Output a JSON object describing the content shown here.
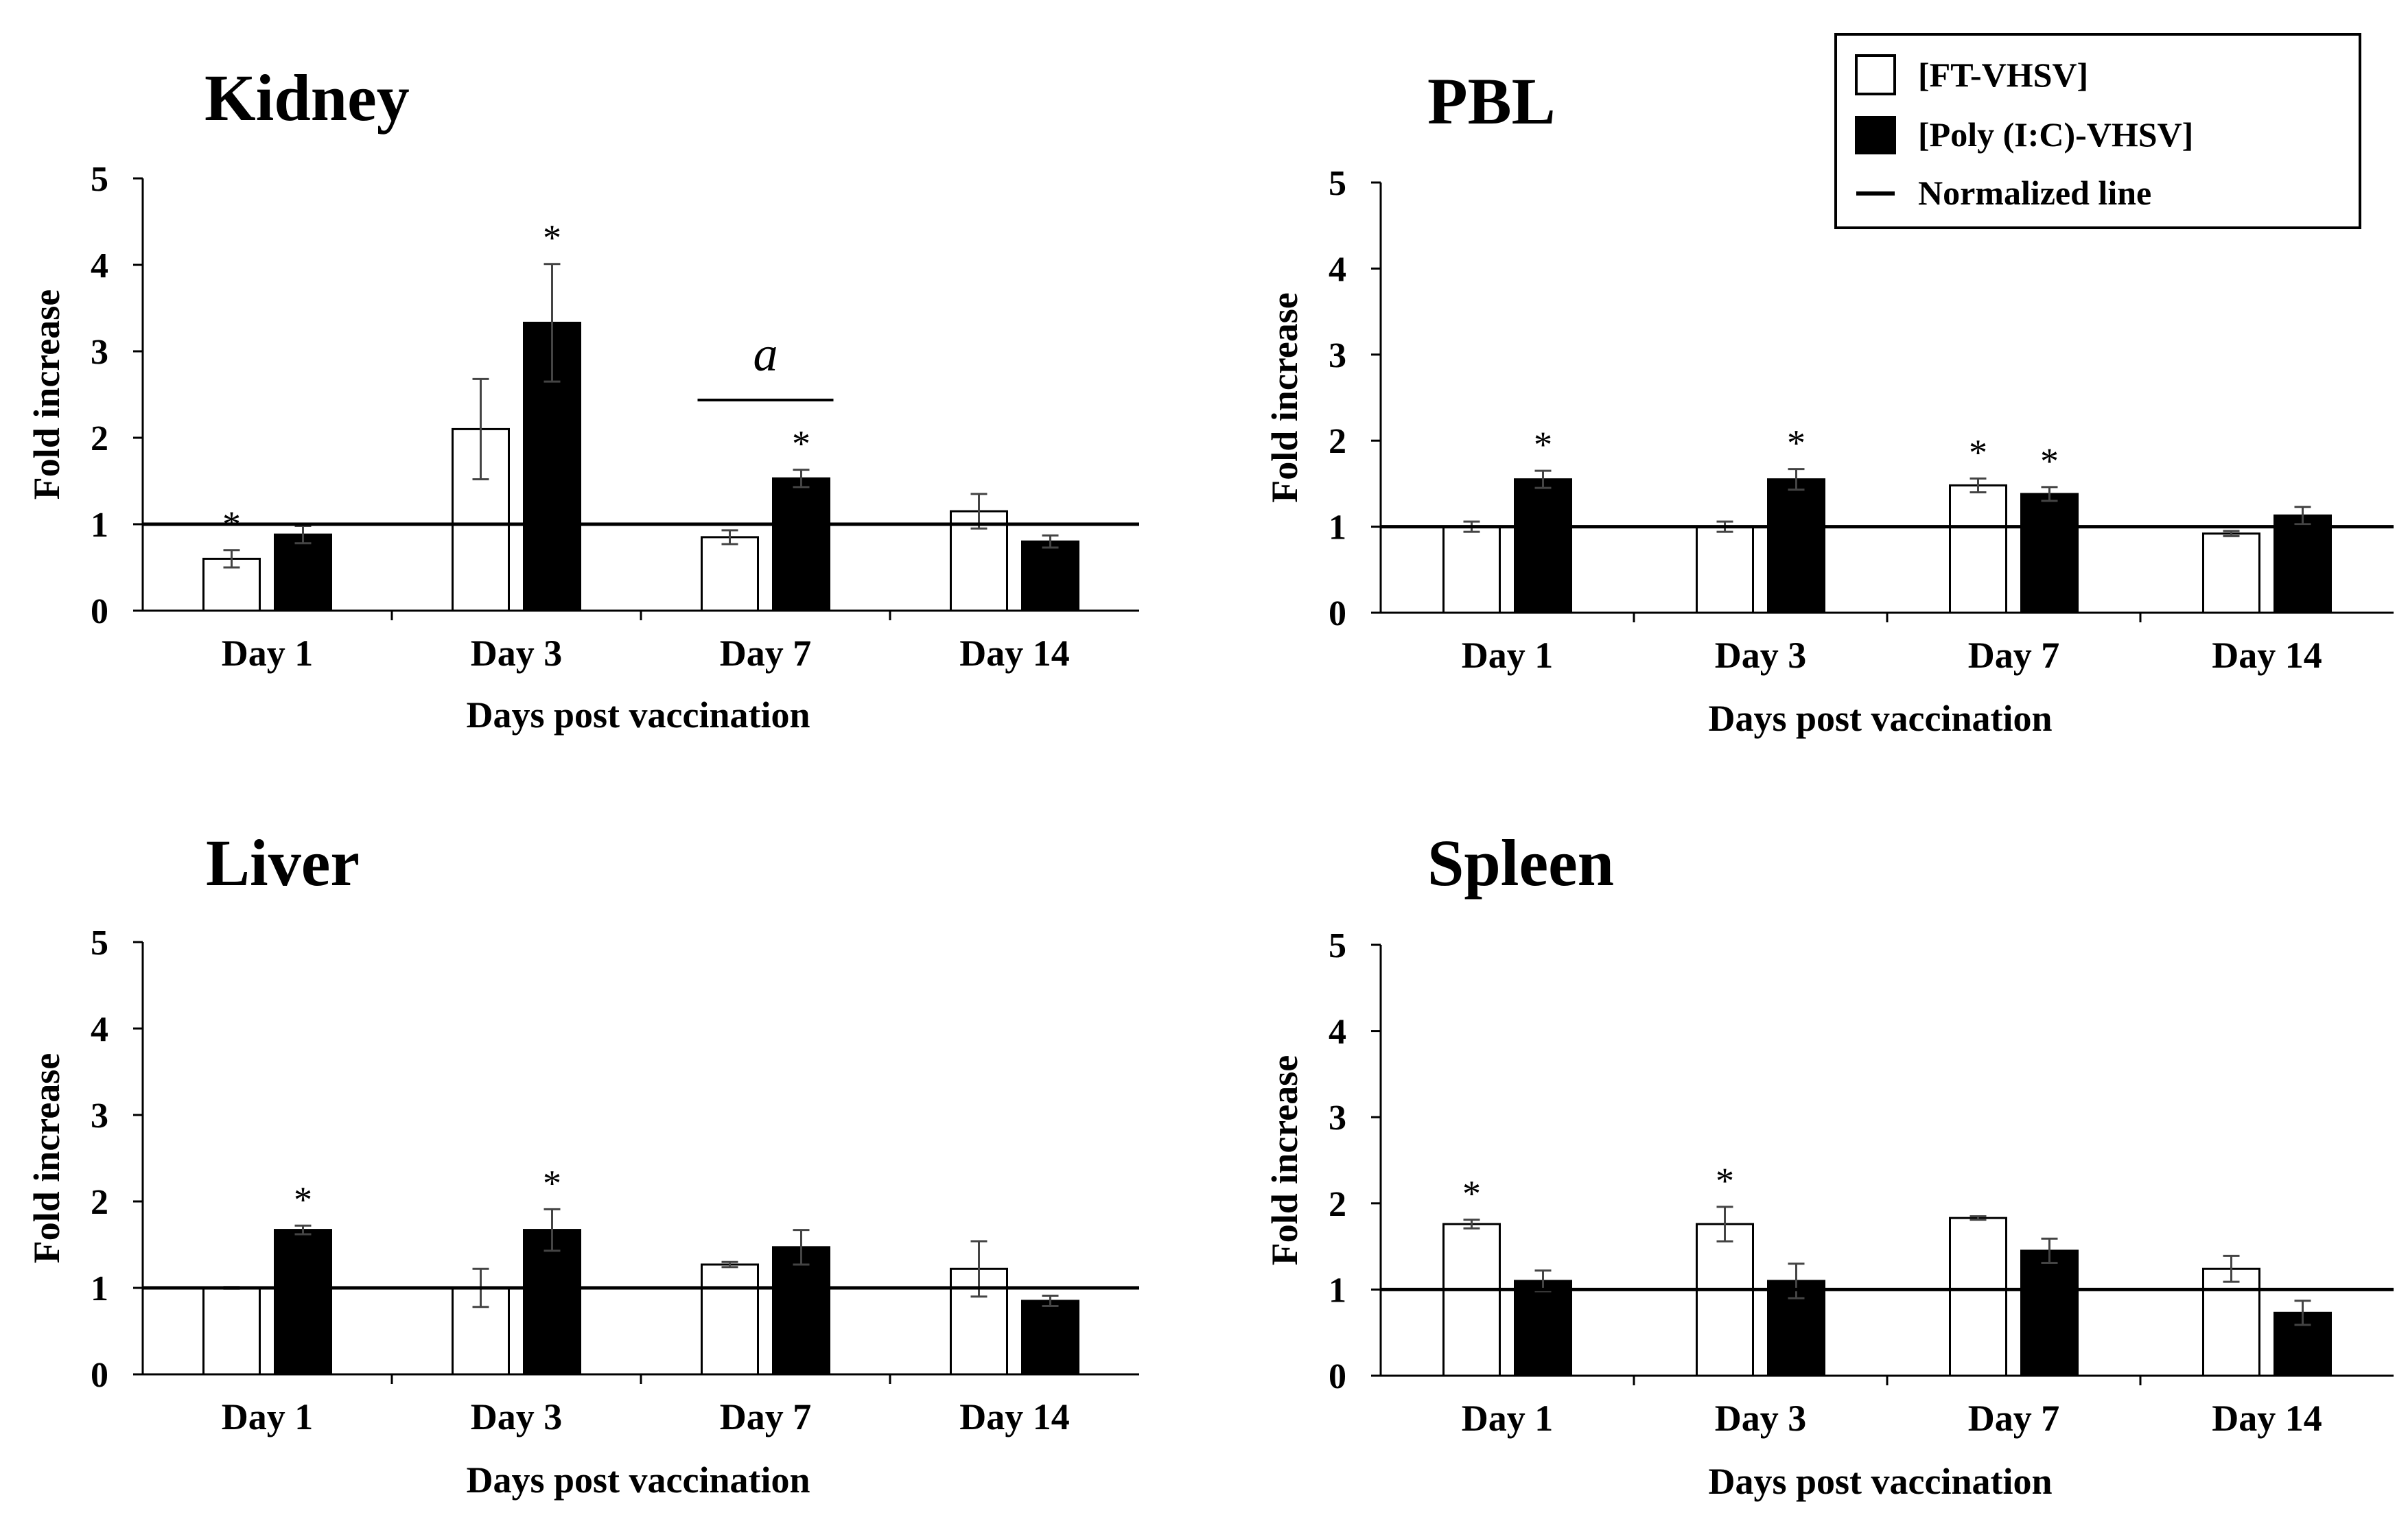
{
  "legend": {
    "items": [
      {
        "label": "[FT-VHSV]",
        "color": "#ffffff",
        "kind": "box"
      },
      {
        "label": "[Poly (I:C)-VHSV]",
        "color": "#000000",
        "kind": "box"
      },
      {
        "label": "Normalized line",
        "color": "#000000",
        "kind": "line"
      }
    ]
  },
  "chart_data": [
    {
      "type": "bar",
      "title": "Kidney",
      "xlabel": "Days post vaccination",
      "ylabel": "Fold increase",
      "ylim": [
        0,
        5
      ],
      "yticks": [
        "0",
        "1",
        "2",
        "3",
        "4",
        "5"
      ],
      "categories": [
        "Day 1",
        "Day 3",
        "Day 7",
        "Day 14"
      ],
      "normalized_line": 1,
      "series": [
        {
          "name": "[FT-VHSV]",
          "color": "#ffffff",
          "values": [
            0.6,
            2.1,
            0.85,
            1.15
          ],
          "errors": [
            0.1,
            0.58,
            0.08,
            0.2
          ],
          "stars": [
            true,
            false,
            false,
            false
          ]
        },
        {
          "name": "[Poly (I:C)-VHSV]",
          "color": "#000000",
          "values": [
            0.88,
            3.33,
            1.53,
            0.8
          ],
          "errors": [
            0.1,
            0.68,
            0.1,
            0.07
          ],
          "stars": [
            false,
            true,
            true,
            false
          ]
        }
      ],
      "annotation": {
        "text": "a",
        "category": "Day 7"
      }
    },
    {
      "type": "bar",
      "title": "PBL",
      "xlabel": "Days post vaccination",
      "ylabel": "Fold increase",
      "ylim": [
        0,
        5
      ],
      "yticks": [
        "0",
        "1",
        "2",
        "3",
        "4",
        "5"
      ],
      "categories": [
        "Day 1",
        "Day 3",
        "Day 7",
        "Day 14"
      ],
      "normalized_line": 1,
      "series": [
        {
          "name": "[FT-VHSV]",
          "color": "#ffffff",
          "values": [
            1.0,
            1.0,
            1.48,
            0.92
          ],
          "errors": [
            0.06,
            0.06,
            0.08,
            0.03
          ],
          "stars": [
            false,
            false,
            true,
            false
          ]
        },
        {
          "name": "[Poly (I:C)-VHSV]",
          "color": "#000000",
          "values": [
            1.55,
            1.55,
            1.38,
            1.13
          ],
          "errors": [
            0.1,
            0.12,
            0.08,
            0.1
          ],
          "stars": [
            true,
            true,
            true,
            false
          ]
        }
      ]
    },
    {
      "type": "bar",
      "title": "Liver",
      "xlabel": "Days post vaccination",
      "ylabel": "Fold increase",
      "ylim": [
        0,
        5
      ],
      "yticks": [
        "0",
        "1",
        "2",
        "3",
        "4",
        "5"
      ],
      "categories": [
        "Day 1",
        "Day 3",
        "Day 7",
        "Day 14"
      ],
      "normalized_line": 1,
      "series": [
        {
          "name": "[FT-VHSV]",
          "color": "#ffffff",
          "values": [
            1.0,
            1.0,
            1.27,
            1.22
          ],
          "errors": [
            0.01,
            0.22,
            0.03,
            0.32
          ],
          "stars": [
            false,
            false,
            false,
            false
          ]
        },
        {
          "name": "[Poly (I:C)-VHSV]",
          "color": "#000000",
          "values": [
            1.67,
            1.67,
            1.47,
            0.85
          ],
          "errors": [
            0.05,
            0.24,
            0.2,
            0.06
          ],
          "stars": [
            true,
            true,
            false,
            false
          ]
        }
      ]
    },
    {
      "type": "bar",
      "title": "Spleen",
      "xlabel": "Days post vaccination",
      "ylabel": "Fold increase",
      "ylim": [
        0,
        5
      ],
      "yticks": [
        "0",
        "1",
        "2",
        "3",
        "4",
        "5"
      ],
      "categories": [
        "Day 1",
        "Day 3",
        "Day 7",
        "Day 14"
      ],
      "normalized_line": 1,
      "series": [
        {
          "name": "[FT-VHSV]",
          "color": "#ffffff",
          "values": [
            1.76,
            1.76,
            1.83,
            1.24
          ],
          "errors": [
            0.05,
            0.2,
            0.02,
            0.15
          ],
          "stars": [
            true,
            true,
            false,
            false
          ]
        },
        {
          "name": "[Poly (I:C)-VHSV]",
          "color": "#000000",
          "values": [
            1.1,
            1.1,
            1.45,
            0.73
          ],
          "errors": [
            0.12,
            0.2,
            0.14,
            0.14
          ],
          "stars": [
            false,
            false,
            false,
            false
          ]
        }
      ]
    }
  ]
}
